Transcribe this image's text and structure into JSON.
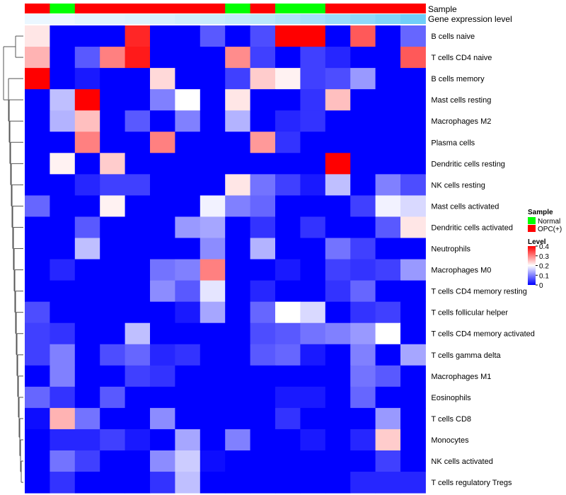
{
  "chart_data": {
    "type": "heatmap",
    "annotation_tracks": {
      "sample_label": "Sample",
      "level_label": "Gene expression level"
    },
    "sample_groups": [
      "OPC(+)",
      "Normal",
      "OPC(+)",
      "OPC(+)",
      "OPC(+)",
      "OPC(+)",
      "OPC(+)",
      "OPC(+)",
      "Normal",
      "OPC(+)",
      "Normal",
      "Normal",
      "OPC(+)",
      "OPC(+)",
      "OPC(+)",
      "OPC(+)"
    ],
    "gene_level_values": [
      0.06,
      0.05,
      0.1,
      0.12,
      0.15,
      0.18,
      0.22,
      0.26,
      0.3,
      0.35,
      0.42,
      0.48,
      0.55,
      0.62,
      0.7,
      0.8
    ],
    "rows": [
      "B cells naive",
      "T cells CD4 naive",
      "B cells memory",
      "Mast cells resting",
      "Macrophages M2",
      "Plasma cells",
      "Dendritic cells resting",
      "NK cells resting",
      "Mast cells activated",
      "Dendritic cells activated",
      "Neutrophils",
      "Macrophages M0",
      "T cells CD4 memory resting",
      "T cells follicular helper",
      "T cells CD4 memory activated",
      "T cells gamma delta",
      "Macrophages M1",
      "Eosinophils",
      "T cells CD8",
      "Monocytes",
      "NK cells activated",
      "T cells regulatory  Tregs"
    ],
    "values": [
      [
        0.22,
        0,
        0,
        0,
        0.37,
        0,
        0,
        0.07,
        0,
        0.06,
        0.4,
        0.4,
        0,
        0.33,
        0,
        0.08
      ],
      [
        0.26,
        0,
        0.07,
        0.3,
        0.38,
        0,
        0,
        0,
        0.29,
        0.05,
        0,
        0.05,
        0.03,
        0,
        0,
        0.33
      ],
      [
        0.4,
        0,
        0.02,
        0,
        0,
        0.23,
        0,
        0,
        0.05,
        0.24,
        0.21,
        0.05,
        0.06,
        0.12,
        0,
        0
      ],
      [
        0,
        0.15,
        0.4,
        0,
        0,
        0.1,
        0.2,
        0,
        0.22,
        0,
        0,
        0.04,
        0.25,
        0,
        0,
        0
      ],
      [
        0,
        0.14,
        0.25,
        0,
        0.07,
        0,
        0.1,
        0,
        0.14,
        0,
        0.03,
        0.04,
        0,
        0,
        0,
        0
      ],
      [
        0,
        0,
        0.3,
        0,
        0,
        0.3,
        0,
        0,
        0,
        0.28,
        0.04,
        0,
        0,
        0,
        0,
        0
      ],
      [
        0,
        0.21,
        0,
        0.24,
        0,
        0,
        0,
        0,
        0,
        0,
        0,
        0,
        0.4,
        0,
        0,
        0
      ],
      [
        0,
        0,
        0.03,
        0.05,
        0.05,
        0,
        0,
        0,
        0.22,
        0.09,
        0.05,
        0.02,
        0.15,
        0,
        0.1,
        0.06
      ],
      [
        0.08,
        0,
        0,
        0.21,
        0,
        0,
        0,
        0.19,
        0.1,
        0.08,
        0,
        0,
        0,
        0.05,
        0.19,
        0.17
      ],
      [
        0,
        0,
        0.07,
        0,
        0,
        0,
        0.12,
        0.13,
        0,
        0.04,
        0,
        0.04,
        0,
        0,
        0.07,
        0.22
      ],
      [
        0,
        0,
        0.15,
        0,
        0,
        0,
        0,
        0.11,
        0,
        0.14,
        0,
        0,
        0.09,
        0.05,
        0,
        0
      ],
      [
        0,
        0.03,
        0,
        0,
        0,
        0.09,
        0.1,
        0.3,
        0,
        0,
        0.02,
        0,
        0.05,
        0.04,
        0.05,
        0.12
      ],
      [
        0,
        0,
        0,
        0,
        0,
        0.11,
        0.07,
        0.18,
        0,
        0.03,
        0,
        0,
        0.04,
        0.08,
        0,
        0
      ],
      [
        0.06,
        0,
        0,
        0,
        0,
        0,
        0.02,
        0.13,
        0,
        0.08,
        0.2,
        0.17,
        0,
        0.04,
        0.05,
        0
      ],
      [
        0.05,
        0.04,
        0,
        0,
        0.15,
        0,
        0,
        0,
        0,
        0.06,
        0.07,
        0.09,
        0.1,
        0.12,
        0.2,
        0
      ],
      [
        0.05,
        0.1,
        0,
        0.06,
        0.08,
        0.03,
        0.04,
        0,
        0,
        0.07,
        0.08,
        0.02,
        0,
        0.1,
        0,
        0.13
      ],
      [
        0,
        0.1,
        0,
        0,
        0.05,
        0.04,
        0,
        0,
        0,
        0,
        0,
        0,
        0,
        0.09,
        0.07,
        0
      ],
      [
        0.08,
        0.04,
        0,
        0.07,
        0,
        0,
        0,
        0,
        0,
        0,
        0.02,
        0.02,
        0,
        0.08,
        0,
        0
      ],
      [
        0.01,
        0.26,
        0.09,
        0,
        0,
        0.11,
        0,
        0,
        0,
        0,
        0.04,
        0,
        0,
        0,
        0.12,
        0
      ],
      [
        0,
        0.03,
        0.03,
        0.05,
        0.02,
        0,
        0.13,
        0,
        0.1,
        0,
        0,
        0.02,
        0,
        0.03,
        0.24,
        0
      ],
      [
        0,
        0.09,
        0.05,
        0,
        0,
        0.11,
        0.16,
        0.01,
        0,
        0,
        0,
        0,
        0,
        0,
        0.05,
        0
      ],
      [
        0,
        0.04,
        0,
        0,
        0,
        0.04,
        0.15,
        0,
        0,
        0,
        0,
        0,
        0,
        0.03,
        0.03,
        0.03
      ]
    ],
    "legend": {
      "sample": {
        "title": "Sample",
        "entries": [
          {
            "label": "Normal",
            "color": "#00ff00"
          },
          {
            "label": "OPC(+)",
            "color": "#ff0000"
          }
        ]
      },
      "level": {
        "title": "Level",
        "ticks": [
          {
            "value": 0.4,
            "label": "0.4"
          },
          {
            "value": 0.3,
            "label": "0.3"
          },
          {
            "value": 0.2,
            "label": "0.2"
          },
          {
            "value": 0.1,
            "label": "0.1"
          },
          {
            "value": 0,
            "label": "0"
          }
        ]
      }
    },
    "color_scale": {
      "low": "#0000ff",
      "mid": "#ffffff",
      "high": "#ff0000",
      "domain": [
        0,
        0.4
      ]
    },
    "dendrogram": "row clustering tree on left"
  }
}
